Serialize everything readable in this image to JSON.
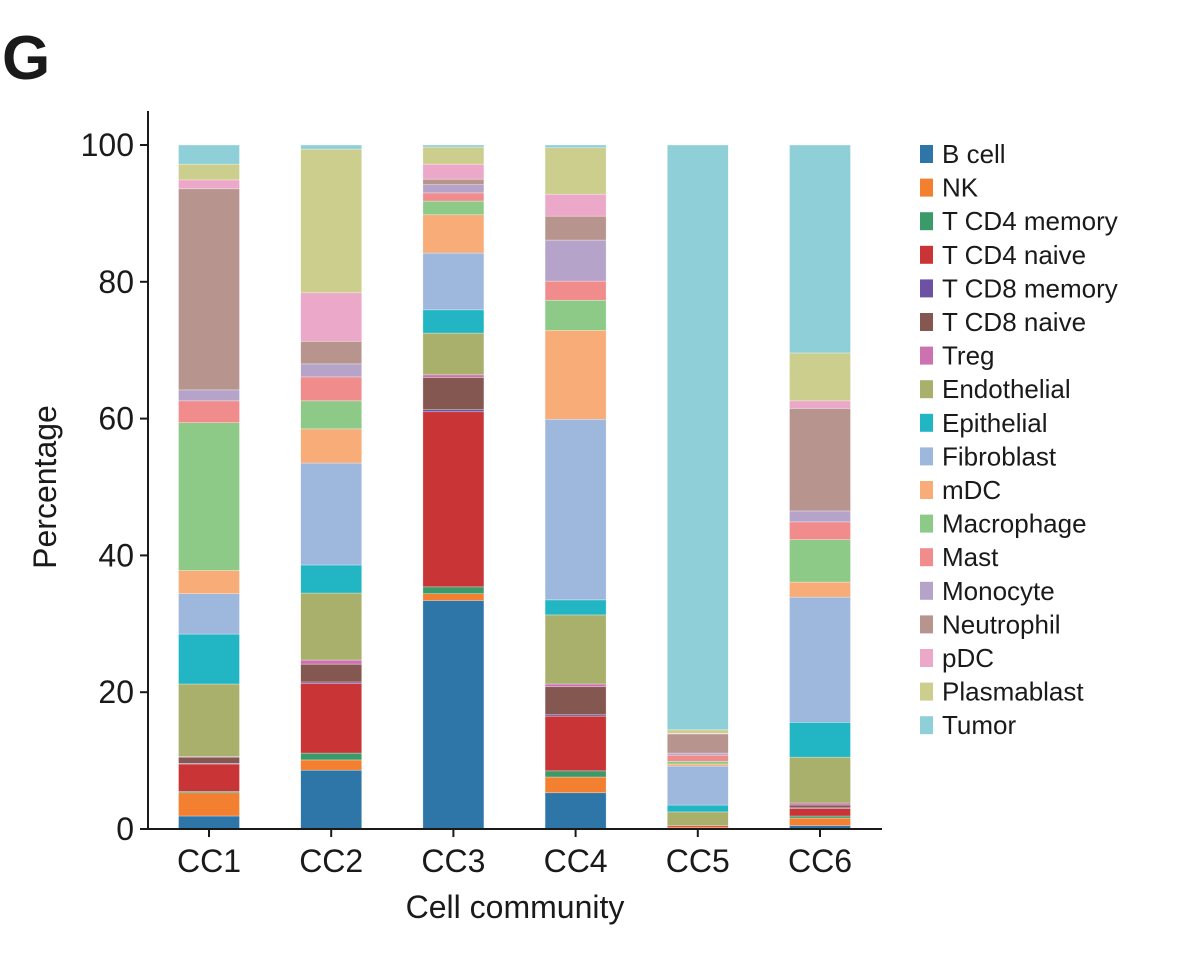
{
  "panel_label": "G",
  "chart_data": {
    "type": "bar",
    "stacked": true,
    "title": "",
    "xlabel": "Cell community",
    "ylabel": "Percentage",
    "ylim": [
      0,
      100
    ],
    "yticks": [
      0,
      20,
      40,
      60,
      80,
      100
    ],
    "grid": false,
    "legend_position": "right",
    "categories": [
      "CC1",
      "CC2",
      "CC3",
      "CC4",
      "CC5",
      "CC6"
    ],
    "series": [
      {
        "name": "B cell",
        "color": "#2e75a8",
        "values": [
          1.9,
          8.6,
          33.4,
          5.3,
          0.1,
          0.5
        ]
      },
      {
        "name": "NK",
        "color": "#f37f30",
        "values": [
          3.4,
          1.5,
          1.0,
          2.3,
          0.2,
          1.1
        ]
      },
      {
        "name": "T CD4 memory",
        "color": "#3a9a6a",
        "values": [
          0.2,
          1.0,
          1.0,
          0.9,
          0.0,
          0.3
        ]
      },
      {
        "name": "T CD4 naive",
        "color": "#c93436",
        "values": [
          4.0,
          10.2,
          25.6,
          8.0,
          0.2,
          1.1
        ]
      },
      {
        "name": "T CD8 memory",
        "color": "#6d52a3",
        "values": [
          0.1,
          0.2,
          0.3,
          0.2,
          0.0,
          0.1
        ]
      },
      {
        "name": "T CD8 naive",
        "color": "#855751",
        "values": [
          0.9,
          2.6,
          4.7,
          4.1,
          0.0,
          0.4
        ]
      },
      {
        "name": "Treg",
        "color": "#cc72b0",
        "values": [
          0.1,
          0.6,
          0.4,
          0.4,
          0.0,
          0.3
        ]
      },
      {
        "name": "Endothelial",
        "color": "#a8b06c",
        "values": [
          10.6,
          9.8,
          6.1,
          10.1,
          2.0,
          6.7
        ]
      },
      {
        "name": "Epithelial",
        "color": "#22b6c4",
        "values": [
          7.3,
          4.1,
          3.4,
          2.2,
          1.0,
          5.1
        ]
      },
      {
        "name": "Fibroblast",
        "color": "#9db8dc",
        "values": [
          5.9,
          14.9,
          8.3,
          26.4,
          5.7,
          18.3
        ]
      },
      {
        "name": "mDC",
        "color": "#f8ac78",
        "values": [
          3.4,
          5.0,
          5.6,
          13.0,
          0.3,
          2.2
        ]
      },
      {
        "name": "Macrophage",
        "color": "#8dca88",
        "values": [
          21.6,
          4.1,
          2.0,
          4.4,
          0.4,
          6.2
        ]
      },
      {
        "name": "Mast",
        "color": "#f18c8c",
        "values": [
          3.2,
          3.5,
          1.2,
          2.8,
          0.9,
          2.6
        ]
      },
      {
        "name": "Monocyte",
        "color": "#b5a3c9",
        "values": [
          1.6,
          1.9,
          1.2,
          6.0,
          0.3,
          1.6
        ]
      },
      {
        "name": "Neutrophil",
        "color": "#b8948e",
        "values": [
          29.4,
          3.3,
          0.8,
          3.5,
          2.8,
          15.0
        ]
      },
      {
        "name": "pDC",
        "color": "#eca8c8",
        "values": [
          1.3,
          7.1,
          2.2,
          3.2,
          0.1,
          1.1
        ]
      },
      {
        "name": "Plasmablast",
        "color": "#ccce8e",
        "values": [
          2.3,
          21.0,
          2.5,
          6.8,
          0.5,
          7.0
        ]
      },
      {
        "name": "Tumor",
        "color": "#8fd0d8",
        "values": [
          2.8,
          0.6,
          0.3,
          0.4,
          85.5,
          30.4
        ]
      }
    ]
  }
}
